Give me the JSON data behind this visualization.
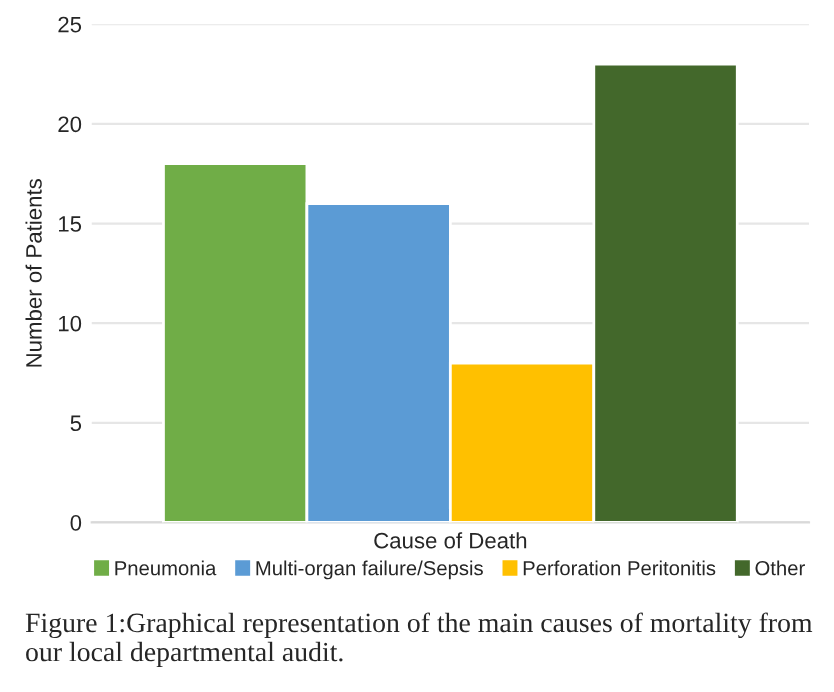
{
  "chart_data": {
    "type": "bar",
    "xlabel": "Cause of Death",
    "ylabel": "Number of Patients",
    "categories": [
      null
    ],
    "series": [
      {
        "name": "Pneumonia",
        "color": "#70ad47",
        "values": [
          18
        ]
      },
      {
        "name": "Multi-organ failure/Sepsis",
        "color": "#5b9bd5",
        "values": [
          16
        ]
      },
      {
        "name": "Perforation Peritonitis",
        "color": "#ffc000",
        "values": [
          8
        ]
      },
      {
        "name": "Other",
        "color": "#43682b",
        "values": [
          23
        ]
      }
    ],
    "ylim": [
      0,
      25
    ],
    "yticks": [
      0,
      5,
      10,
      15,
      20,
      25
    ],
    "grid": "y",
    "legend": "bottom",
    "annotations": [
      "Figure 1:Graphical representation of the main causes of mortality from our local departmental audit."
    ]
  }
}
